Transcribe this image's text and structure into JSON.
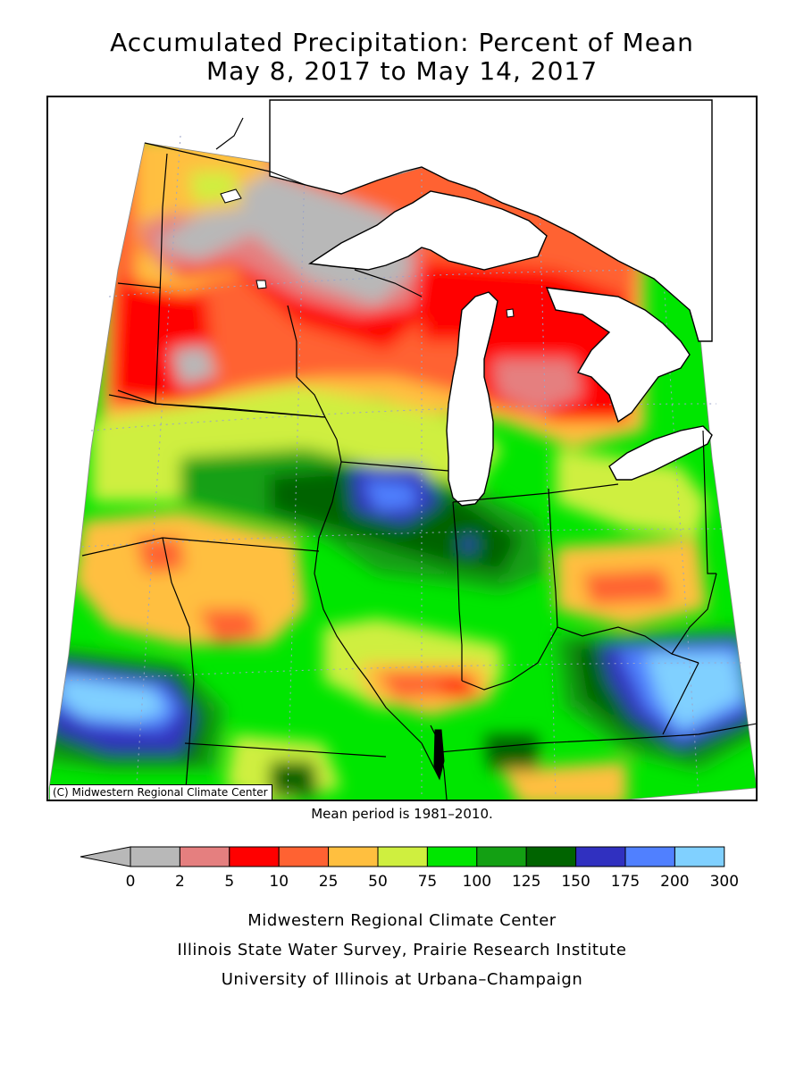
{
  "header": {
    "title_line1": "Accumulated Precipitation: Percent of Mean",
    "title_line2": "May 8, 2017 to May 14, 2017"
  },
  "map": {
    "copyright": "(C) Midwestern Regional Climate Center",
    "mean_period": "Mean period is 1981–2010."
  },
  "legend": {
    "tick_labels": [
      "0",
      "2",
      "5",
      "10",
      "25",
      "50",
      "75",
      "100",
      "125",
      "150",
      "175",
      "200",
      "300"
    ],
    "colors": [
      "#b8b8b8",
      "#e57f7f",
      "#ff0000",
      "#ff6232",
      "#ffbf3f",
      "#cfef3f",
      "#00e600",
      "#13a013",
      "#006400",
      "#3030c0",
      "#5080ff",
      "#80d0ff"
    ]
  },
  "footer": {
    "line1": "Midwestern Regional Climate Center",
    "line2": "Illinois State Water Survey, Prairie Research Institute",
    "line3": "University of Illinois at Urbana–Champaign"
  }
}
